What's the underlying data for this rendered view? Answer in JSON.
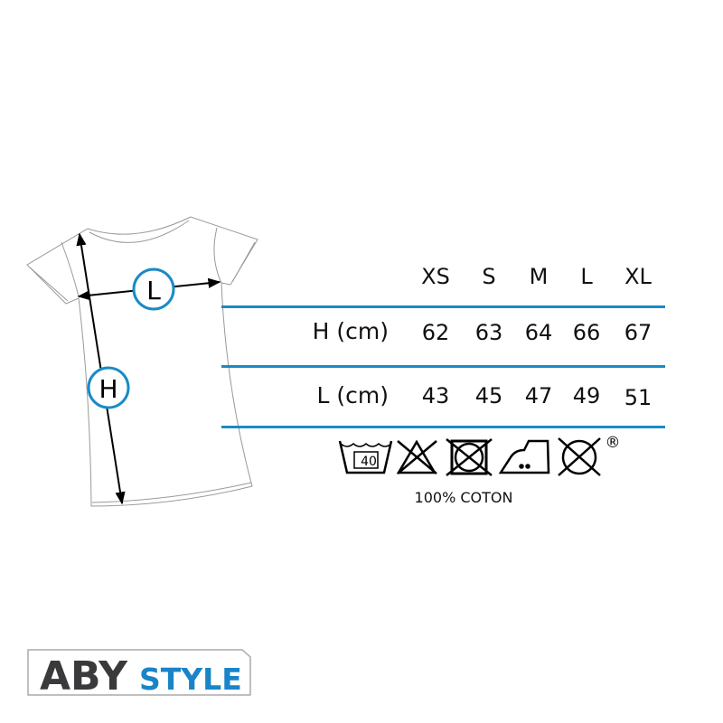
{
  "size_chart": {
    "sizes": [
      "XS",
      "S",
      "M",
      "L",
      "XL"
    ],
    "rows": [
      {
        "label": "H (cm)",
        "values": [
          "62",
          "63",
          "64",
          "66",
          "67"
        ]
      },
      {
        "label": "L (cm)",
        "values": [
          "43",
          "45",
          "47",
          "49",
          "51"
        ]
      }
    ]
  },
  "diagram": {
    "height_marker": "H",
    "width_marker": "L"
  },
  "care": {
    "icons": [
      "wash-40-icon",
      "no-bleach-icon",
      "no-tumble-dry-icon",
      "iron-medium-icon",
      "no-dry-clean-icon"
    ],
    "wash_temp": "40",
    "registered_mark": "®",
    "material": "100% COTON"
  },
  "brand": {
    "logo_text_1": "ABY",
    "logo_text_2": "STYLE"
  },
  "colors": {
    "accent": "#1a8ac6",
    "logo_dark": "#3a3a3c",
    "logo_blue": "#1a84c8"
  }
}
